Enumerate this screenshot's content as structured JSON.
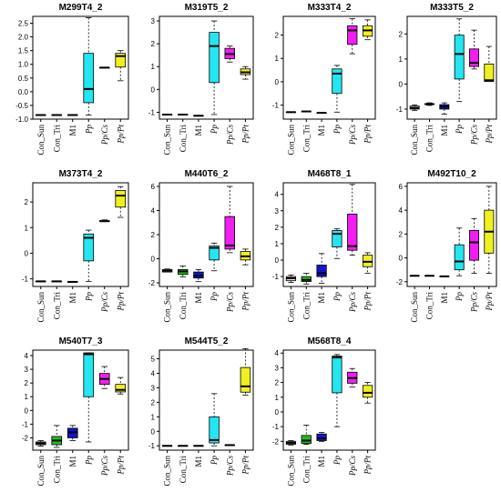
{
  "colors": {
    "Con_Sun": "#dddddd",
    "Con_Tri": "#1fbd1f",
    "M1": "#1414cc",
    "Pp": "#22e6f0",
    "Pp/Cs": "#f01ef0",
    "Pp/Pt": "#f0f01e",
    "frame": "#000000",
    "median": "#000000"
  },
  "chart_data": [
    {
      "type": "box",
      "title": "M299T4_2",
      "categories": [
        "Con_Sun",
        "Con_Tri",
        "M1",
        "Pp",
        "Pp/Cs",
        "Pp/Pt"
      ],
      "italic": [
        false,
        false,
        false,
        true,
        true,
        true
      ],
      "ylim": [
        -1.0,
        2.75
      ],
      "yticks": [
        -1.0,
        -0.5,
        0.0,
        0.5,
        1.0,
        1.5,
        2.0,
        2.5
      ],
      "yticklabels": [
        "-1.0",
        "-0.5",
        "0.0",
        "0.5",
        "1.0",
        "1.5",
        "2.0",
        "2.5"
      ],
      "boxes": [
        {
          "min": -0.85,
          "q1": -0.85,
          "median": -0.85,
          "q3": -0.85,
          "max": -0.85
        },
        {
          "min": -0.85,
          "q1": -0.85,
          "median": -0.85,
          "q3": -0.85,
          "max": -0.85
        },
        {
          "min": -0.85,
          "q1": -0.85,
          "median": -0.85,
          "q3": -0.85,
          "max": -0.85
        },
        {
          "min": -0.85,
          "q1": -0.4,
          "median": 0.1,
          "q3": 1.4,
          "max": 2.7
        },
        {
          "min": 0.88,
          "q1": 0.88,
          "median": 0.88,
          "q3": 0.88,
          "max": 0.88
        },
        {
          "min": 0.4,
          "q1": 0.9,
          "median": 1.3,
          "q3": 1.4,
          "max": 1.5
        }
      ]
    },
    {
      "type": "box",
      "title": "M319T5_2",
      "categories": [
        "Con_Sun",
        "Con_Tri",
        "M1",
        "Pp",
        "Pp/Cs",
        "Pp/Pt"
      ],
      "italic": [
        false,
        false,
        false,
        true,
        true,
        true
      ],
      "ylim": [
        -1.3,
        3.2
      ],
      "yticks": [
        -1,
        0,
        1,
        2,
        3
      ],
      "yticklabels": [
        "-1",
        "0",
        "1",
        "2",
        "3"
      ],
      "boxes": [
        {
          "min": -1.1,
          "q1": -1.1,
          "median": -1.1,
          "q3": -1.1,
          "max": -1.1
        },
        {
          "min": -1.1,
          "q1": -1.1,
          "median": -1.1,
          "q3": -1.1,
          "max": -1.1
        },
        {
          "min": -1.15,
          "q1": -1.15,
          "median": -1.15,
          "q3": -1.15,
          "max": -1.15
        },
        {
          "min": -1.1,
          "q1": 0.3,
          "median": 1.9,
          "q3": 2.5,
          "max": 3.0
        },
        {
          "min": 1.2,
          "q1": 1.35,
          "median": 1.55,
          "q3": 1.8,
          "max": 1.9
        },
        {
          "min": 0.45,
          "q1": 0.65,
          "median": 0.75,
          "q3": 0.9,
          "max": 1.0
        }
      ]
    },
    {
      "type": "box",
      "title": "M333T4_2",
      "categories": [
        "Con_Sun",
        "Con_Tri",
        "M1",
        "Pp",
        "Pp/Cs",
        "Pp/Pt"
      ],
      "italic": [
        false,
        false,
        false,
        true,
        true,
        true
      ],
      "ylim": [
        -1.6,
        2.8
      ],
      "yticks": [
        -1,
        0,
        1,
        2
      ],
      "yticklabels": [
        "-1",
        "0",
        "1",
        "2"
      ],
      "boxes": [
        {
          "min": -1.3,
          "q1": -1.3,
          "median": -1.3,
          "q3": -1.3,
          "max": -1.3
        },
        {
          "min": -1.27,
          "q1": -1.27,
          "median": -1.27,
          "q3": -1.27,
          "max": -1.27
        },
        {
          "min": -1.33,
          "q1": -1.33,
          "median": -1.33,
          "q3": -1.33,
          "max": -1.33
        },
        {
          "min": -1.3,
          "q1": -0.5,
          "median": 0.35,
          "q3": 0.55,
          "max": 0.7
        },
        {
          "min": 1.2,
          "q1": 1.6,
          "median": 2.2,
          "q3": 2.4,
          "max": 2.7
        },
        {
          "min": 1.8,
          "q1": 1.95,
          "median": 2.2,
          "q3": 2.4,
          "max": 2.65
        }
      ]
    },
    {
      "type": "box",
      "title": "M333T5_2",
      "categories": [
        "Con_Sun",
        "Con_Tri",
        "M1",
        "Pp",
        "Pp/Cs",
        "Pp/Pt"
      ],
      "italic": [
        false,
        false,
        false,
        true,
        true,
        true
      ],
      "ylim": [
        -1.4,
        2.7
      ],
      "yticks": [
        -1,
        0,
        1,
        2
      ],
      "yticklabels": [
        "-1",
        "0",
        "1",
        "2"
      ],
      "boxes": [
        {
          "min": -1.05,
          "q1": -1.0,
          "median": -0.95,
          "q3": -0.88,
          "max": -0.83
        },
        {
          "min": -0.85,
          "q1": -0.82,
          "median": -0.8,
          "q3": -0.78,
          "max": -0.75
        },
        {
          "min": -1.2,
          "q1": -1.0,
          "median": -0.9,
          "q3": -0.82,
          "max": -0.75
        },
        {
          "min": -0.7,
          "q1": 0.2,
          "median": 1.2,
          "q3": 1.95,
          "max": 2.6
        },
        {
          "min": 0.6,
          "q1": 0.7,
          "median": 0.85,
          "q3": 1.4,
          "max": 2.15
        },
        {
          "min": 0.1,
          "q1": 0.1,
          "median": 0.15,
          "q3": 0.8,
          "max": 1.5
        }
      ]
    },
    {
      "type": "box",
      "title": "M373T4_2",
      "categories": [
        "Con_Sun",
        "Con_Tri",
        "M1",
        "Pp",
        "Pp/Cs",
        "Pp/Pt"
      ],
      "italic": [
        false,
        false,
        false,
        true,
        true,
        true
      ],
      "ylim": [
        -1.3,
        2.75
      ],
      "yticks": [
        -1,
        0,
        1,
        2
      ],
      "yticklabels": [
        "-1",
        "0",
        "1",
        "2"
      ],
      "boxes": [
        {
          "min": -1.1,
          "q1": -1.1,
          "median": -1.1,
          "q3": -1.1,
          "max": -1.1
        },
        {
          "min": -1.1,
          "q1": -1.1,
          "median": -1.1,
          "q3": -1.1,
          "max": -1.1
        },
        {
          "min": -1.12,
          "q1": -1.12,
          "median": -1.12,
          "q3": -1.12,
          "max": -1.12
        },
        {
          "min": -1.1,
          "q1": -0.3,
          "median": 0.6,
          "q3": 0.75,
          "max": 0.9
        },
        {
          "min": 1.25,
          "q1": 1.25,
          "median": 1.25,
          "q3": 1.27,
          "max": 1.3
        },
        {
          "min": 1.4,
          "q1": 1.8,
          "median": 2.25,
          "q3": 2.45,
          "max": 2.6
        }
      ]
    },
    {
      "type": "box",
      "title": "M440T6_2",
      "categories": [
        "Con_Sun",
        "Con_Tri",
        "M1",
        "Pp",
        "Pp/Cs",
        "Pp/Pt"
      ],
      "italic": [
        false,
        false,
        false,
        true,
        true,
        true
      ],
      "ylim": [
        -2.3,
        6.3
      ],
      "yticks": [
        -2,
        0,
        2,
        4,
        6
      ],
      "yticklabels": [
        "-2",
        "0",
        "2",
        "4",
        "6"
      ],
      "boxes": [
        {
          "min": -1.1,
          "q1": -1.1,
          "median": -1.0,
          "q3": -0.9,
          "max": -0.85
        },
        {
          "min": -1.5,
          "q1": -1.3,
          "median": -1.05,
          "q3": -0.9,
          "max": -0.6
        },
        {
          "min": -1.9,
          "q1": -1.6,
          "median": -1.4,
          "q3": -1.1,
          "max": -0.9
        },
        {
          "min": -1.0,
          "q1": -0.1,
          "median": 0.9,
          "q3": 1.05,
          "max": 1.3
        },
        {
          "min": 0.5,
          "q1": 0.8,
          "median": 1.1,
          "q3": 3.5,
          "max": 6.0
        },
        {
          "min": -0.5,
          "q1": -0.1,
          "median": 0.2,
          "q3": 0.6,
          "max": 0.8
        }
      ]
    },
    {
      "type": "box",
      "title": "M468T8_1",
      "categories": [
        "Con_Sun",
        "Con_Tri",
        "M1",
        "Pp",
        "Pp/Cs",
        "Pp/Pt"
      ],
      "italic": [
        false,
        false,
        false,
        true,
        true,
        true
      ],
      "ylim": [
        -1.6,
        4.7
      ],
      "yticks": [
        -1,
        0,
        1,
        2,
        3,
        4
      ],
      "yticklabels": [
        "-1",
        "0",
        "1",
        "2",
        "3",
        "4"
      ],
      "boxes": [
        {
          "min": -1.35,
          "q1": -1.25,
          "median": -1.1,
          "q3": -1.0,
          "max": -0.9
        },
        {
          "min": -1.45,
          "q1": -1.3,
          "median": -1.2,
          "q3": -1.0,
          "max": -0.8
        },
        {
          "min": -1.4,
          "q1": -1.0,
          "median": -0.8,
          "q3": -0.3,
          "max": 0.4
        },
        {
          "min": 0.1,
          "q1": 0.8,
          "median": 1.6,
          "q3": 1.8,
          "max": 1.9
        },
        {
          "min": 0.3,
          "q1": 0.6,
          "median": 0.85,
          "q3": 2.8,
          "max": 4.6
        },
        {
          "min": -0.8,
          "q1": -0.4,
          "median": -0.1,
          "q3": 0.3,
          "max": 0.45
        }
      ]
    },
    {
      "type": "box",
      "title": "M492T10_2",
      "categories": [
        "Con_Sun",
        "Con_Tri",
        "M1",
        "Pp",
        "Pp/Cs",
        "Pp/Pt"
      ],
      "italic": [
        false,
        false,
        false,
        true,
        true,
        true
      ],
      "ylim": [
        -2.4,
        6.3
      ],
      "yticks": [
        -2,
        0,
        2,
        4,
        6
      ],
      "yticklabels": [
        "-2",
        "0",
        "2",
        "4",
        "6"
      ],
      "boxes": [
        {
          "min": -1.5,
          "q1": -1.5,
          "median": -1.5,
          "q3": -1.5,
          "max": -1.5
        },
        {
          "min": -1.5,
          "q1": -1.5,
          "median": -1.5,
          "q3": -1.5,
          "max": -1.5
        },
        {
          "min": -1.55,
          "q1": -1.55,
          "median": -1.55,
          "q3": -1.55,
          "max": -1.55
        },
        {
          "min": -1.5,
          "q1": -1.0,
          "median": -0.3,
          "q3": 1.1,
          "max": 2.5
        },
        {
          "min": -1.3,
          "q1": -0.2,
          "median": 1.3,
          "q3": 2.3,
          "max": 3.3
        },
        {
          "min": -1.3,
          "q1": 0.4,
          "median": 2.2,
          "q3": 4.0,
          "max": 6.0
        }
      ]
    },
    {
      "type": "box",
      "title": "M540T7_3",
      "categories": [
        "Con_Sun",
        "Con_Tri",
        "M1",
        "Pp",
        "Pp/Cs",
        "Pp/Pt"
      ],
      "italic": [
        false,
        false,
        false,
        true,
        true,
        true
      ],
      "ylim": [
        -2.9,
        4.4
      ],
      "yticks": [
        -2,
        -1,
        0,
        1,
        2,
        3,
        4
      ],
      "yticklabels": [
        "-2",
        "-1",
        "0",
        "1",
        "2",
        "3",
        "4"
      ],
      "boxes": [
        {
          "min": -2.6,
          "q1": -2.5,
          "median": -2.4,
          "q3": -2.3,
          "max": -2.2
        },
        {
          "min": -2.7,
          "q1": -2.5,
          "median": -2.2,
          "q3": -1.9,
          "max": -1.1
        },
        {
          "min": -2.2,
          "q1": -2.0,
          "median": -1.6,
          "q3": -1.3,
          "max": -1.1
        },
        {
          "min": -2.3,
          "q1": 1.0,
          "median": 4.1,
          "q3": 4.2,
          "max": 4.2
        },
        {
          "min": 1.6,
          "q1": 1.9,
          "median": 2.3,
          "q3": 2.7,
          "max": 3.2
        },
        {
          "min": 1.2,
          "q1": 1.35,
          "median": 1.5,
          "q3": 1.9,
          "max": 2.4
        }
      ]
    },
    {
      "type": "box",
      "title": "M544T5_2",
      "categories": [
        "Con_Sun",
        "Con_Tri",
        "M1",
        "Pp",
        "Pp/Cs",
        "Pp/Pt"
      ],
      "italic": [
        false,
        false,
        false,
        true,
        true,
        true
      ],
      "ylim": [
        -1.3,
        5.6
      ],
      "yticks": [
        -1,
        0,
        1,
        2,
        3,
        4,
        5
      ],
      "yticklabels": [
        "-1",
        "0",
        "1",
        "2",
        "3",
        "4",
        "5"
      ],
      "boxes": [
        {
          "min": -1.0,
          "q1": -1.0,
          "median": -1.0,
          "q3": -1.0,
          "max": -1.0
        },
        {
          "min": -1.0,
          "q1": -1.0,
          "median": -1.0,
          "q3": -1.0,
          "max": -1.0
        },
        {
          "min": -1.0,
          "q1": -1.0,
          "median": -1.0,
          "q3": -1.0,
          "max": -1.0
        },
        {
          "min": -1.0,
          "q1": -0.8,
          "median": -0.6,
          "q3": 1.0,
          "max": 2.6
        },
        {
          "min": -0.95,
          "q1": -0.95,
          "median": -0.95,
          "q3": -0.95,
          "max": -0.95
        },
        {
          "min": 2.5,
          "q1": 2.7,
          "median": 3.1,
          "q3": 4.4,
          "max": 5.7
        }
      ]
    },
    {
      "type": "box",
      "title": "M568T8_4",
      "categories": [
        "Con_Sun",
        "Con_Tri",
        "M1",
        "Pp",
        "Pp/Cs",
        "Pp/Pt"
      ],
      "italic": [
        false,
        false,
        false,
        true,
        true,
        true
      ],
      "ylim": [
        -2.6,
        4.2
      ],
      "yticks": [
        -2,
        -1,
        0,
        1,
        2,
        3,
        4
      ],
      "yticklabels": [
        "-2",
        "-1",
        "0",
        "1",
        "2",
        "3",
        "4"
      ],
      "boxes": [
        {
          "min": -2.25,
          "q1": -2.2,
          "median": -2.1,
          "q3": -2.0,
          "max": -1.95
        },
        {
          "min": -2.2,
          "q1": -2.15,
          "median": -1.95,
          "q3": -1.6,
          "max": -0.9
        },
        {
          "min": -2.0,
          "q1": -1.95,
          "median": -1.8,
          "q3": -1.5,
          "max": -1.4
        },
        {
          "min": -1.0,
          "q1": 1.3,
          "median": 3.7,
          "q3": 3.8,
          "max": 3.9
        },
        {
          "min": 1.7,
          "q1": 1.95,
          "median": 2.3,
          "q3": 2.7,
          "max": 2.95
        },
        {
          "min": 0.6,
          "q1": 1.0,
          "median": 1.3,
          "q3": 1.8,
          "max": 2.0
        }
      ]
    }
  ]
}
